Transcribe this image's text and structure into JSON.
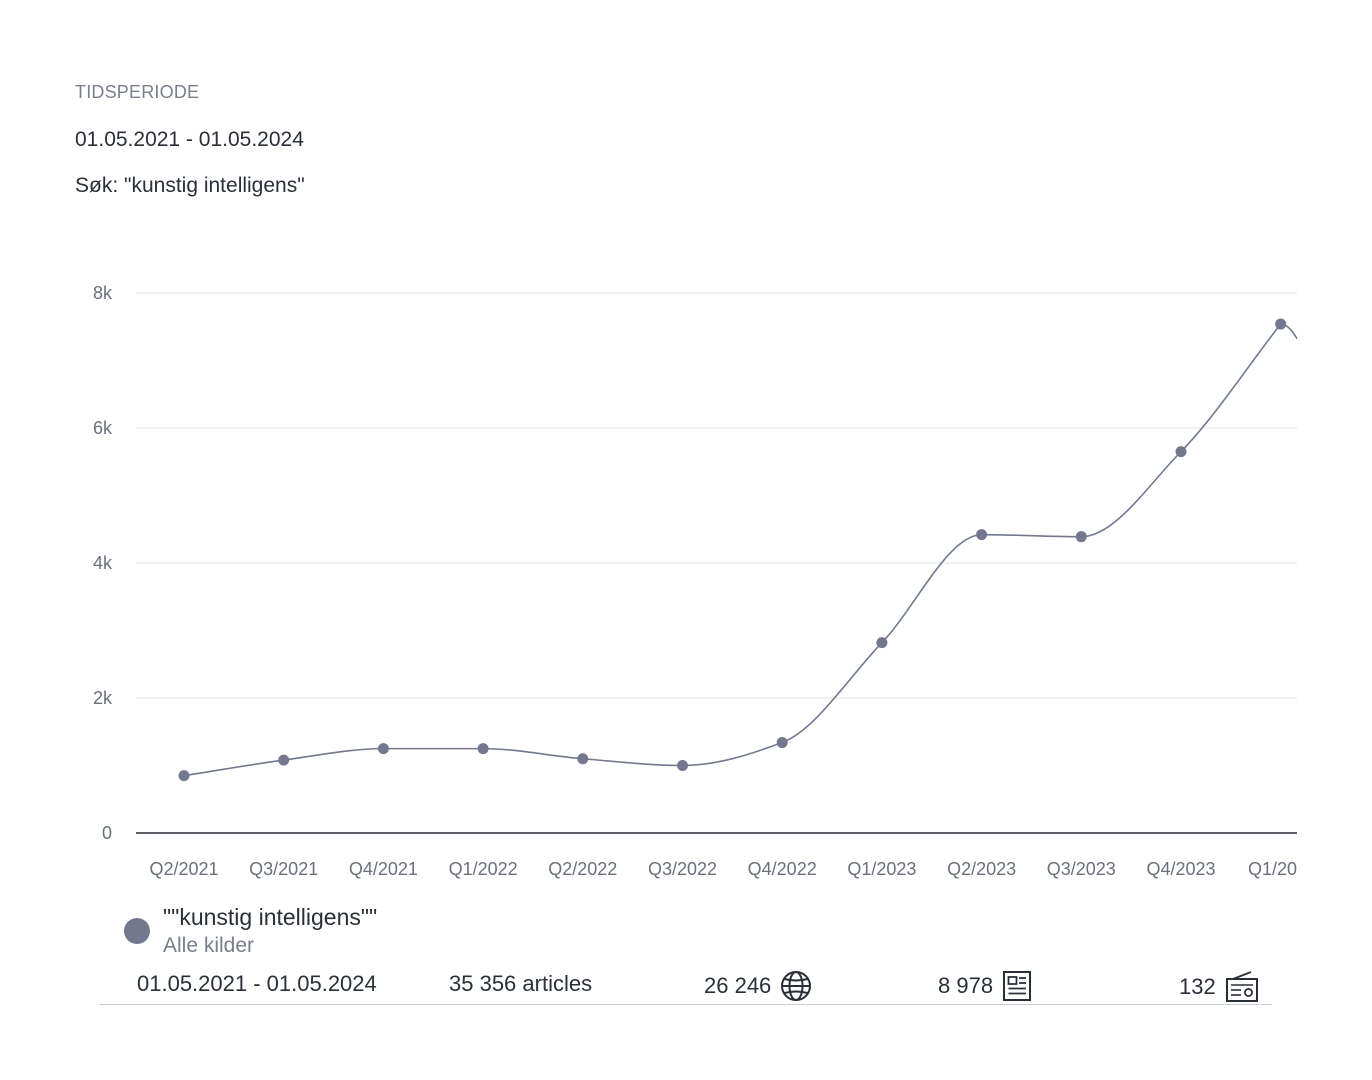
{
  "header": {
    "period_label": "TIDSPERIODE",
    "period_value": "01.05.2021 - 01.05.2024",
    "search_query": "Søk: \"kunstig intelligens\""
  },
  "chart_data": {
    "type": "line",
    "categories": [
      "Q2/2021",
      "Q3/2021",
      "Q4/2021",
      "Q1/2022",
      "Q2/2022",
      "Q3/2022",
      "Q4/2022",
      "Q1/2023",
      "Q2/2023",
      "Q3/2023",
      "Q4/2023",
      "Q1/20"
    ],
    "series": [
      {
        "name": "\"\"kunstig intelligens\"\"",
        "values": [
          850,
          1080,
          1250,
          1250,
          1100,
          1000,
          1340,
          2820,
          4420,
          4390,
          5650,
          7540
        ],
        "color": "#73788f"
      }
    ],
    "ylim": [
      0,
      8000
    ],
    "yticks": [
      0,
      2000,
      4000,
      6000,
      8000
    ],
    "ytick_labels": [
      "0",
      "2k",
      "4k",
      "6k",
      "8k"
    ],
    "grid": true,
    "curve": "smooth"
  },
  "legend": {
    "name": "\"\"kunstig intelligens\"\"",
    "sub": "Alle kilder",
    "dot_color": "#73788f"
  },
  "stats": {
    "period": "01.05.2021 - 01.05.2024",
    "articles": "35 356 articles",
    "web_count": "26 246",
    "web_icon": "globe-icon",
    "print_count": "8 978",
    "print_icon": "newspaper-icon",
    "radio_count": "132",
    "radio_icon": "radio-icon"
  },
  "colors": {
    "line": "#73788f",
    "grid": "#e3e5e9",
    "axis": "#2b2f38",
    "text": "#2b2f38",
    "muted": "#7a7f8a"
  }
}
